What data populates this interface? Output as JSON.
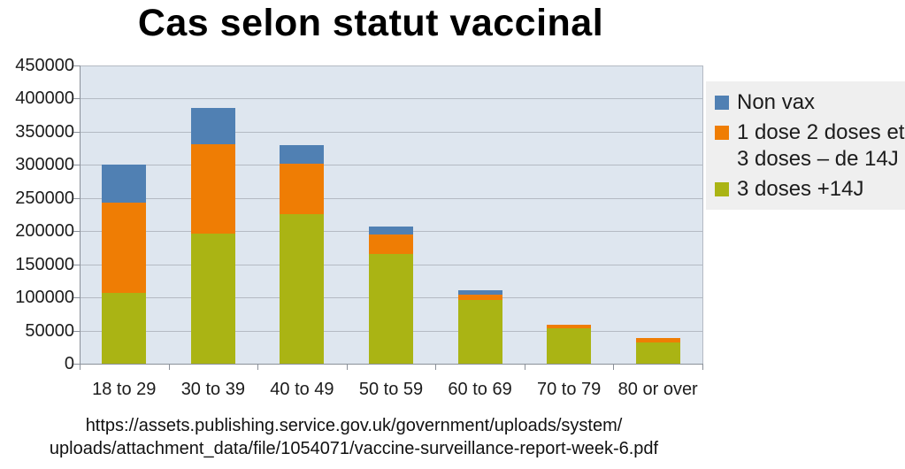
{
  "title": "Cas selon statut vaccinal",
  "footer": {
    "line1": "https://assets.publishing.service.gov.uk/government/uploads/system/",
    "line2": "uploads/attachment_data/file/1054071/vaccine-surveillance-report-week-6.pdf"
  },
  "colors": {
    "non_vax_blue": "#5080b3",
    "dose_orange": "#ef7d04",
    "three_doses_green": "#aab414",
    "plot_wall": "#dee6ef",
    "legend_background": "#efefef",
    "gridline": "#b4bac3",
    "axis": "#8a9099"
  },
  "chart_data": {
    "type": "bar",
    "stacked": true,
    "title": "Cas selon statut vaccinal",
    "categories": [
      "18 to 29",
      "30 to 39",
      "40 to 49",
      "50 to 59",
      "60 to 69",
      "70 to 79",
      "80 or over"
    ],
    "series": [
      {
        "name": "3 doses +14J",
        "color": "#aab414",
        "values": [
          108000,
          198000,
          227000,
          167000,
          97000,
          55000,
          34000
        ]
      },
      {
        "name": "1 dose 2 doses et 3 doses – de 14J",
        "color": "#ef7d04",
        "values": [
          137000,
          134000,
          76000,
          29000,
          9000,
          5000,
          6000
        ]
      },
      {
        "name": "Non vax",
        "color": "#5080b3",
        "values": [
          57000,
          55000,
          28000,
          12000,
          6000,
          0,
          0
        ]
      }
    ],
    "stack_totals": [
      302000,
      387000,
      331000,
      208000,
      112000,
      60000,
      40000
    ],
    "xlabel": "",
    "ylabel": "",
    "ylim": [
      0,
      450000
    ],
    "y_ticks": [
      0,
      50000,
      100000,
      150000,
      200000,
      250000,
      300000,
      350000,
      400000,
      450000
    ],
    "grid": true,
    "legend_position": "right",
    "legend": [
      {
        "label": "Non vax",
        "lines": [
          "Non vax"
        ],
        "color": "#5080b3"
      },
      {
        "label": "1 dose 2 doses et 3 doses – de 14J",
        "lines": [
          "1 dose 2 doses et",
          "3 doses – de 14J"
        ],
        "color": "#ef7d04"
      },
      {
        "label": "3 doses +14J",
        "lines": [
          "3 doses +14J"
        ],
        "color": "#aab414"
      }
    ]
  }
}
